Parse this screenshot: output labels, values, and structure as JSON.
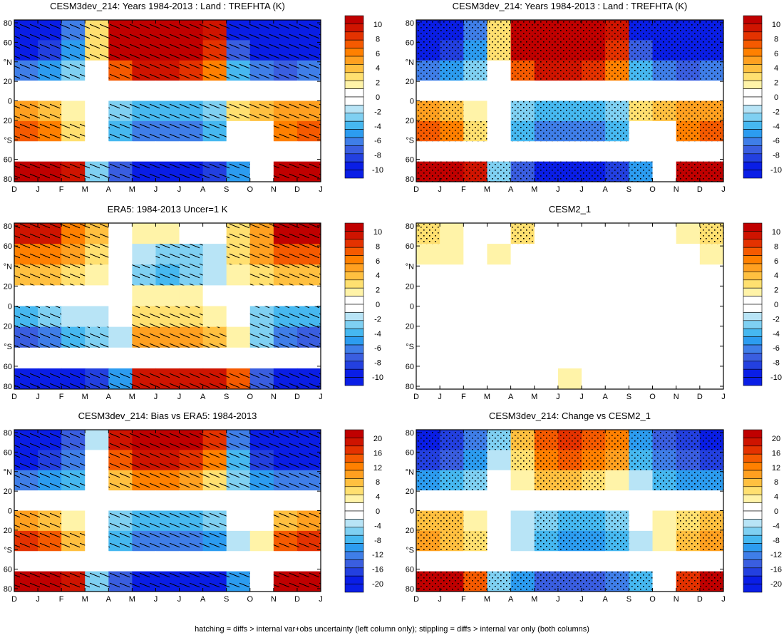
{
  "figure": {
    "footer": "hatching = diffs > internal var+obs uncertainty (left column only); stippling = diffs > internal var only (both columns)"
  },
  "colors": {
    "scale": [
      "#0a1ee6",
      "#2340e0",
      "#3a5ee0",
      "#3f7ee8",
      "#2c9cf0",
      "#46b8f0",
      "#7fd0f2",
      "#b8e4f6",
      "#ffffff",
      "#fff3a8",
      "#ffe070",
      "#ffc040",
      "#ffa020",
      "#ff8000",
      "#f55a00",
      "#e43200",
      "#cf1400",
      "#c00000"
    ]
  },
  "chart_data": [
    {
      "type": "heatmap",
      "panel": "cesm3dev_trefhta",
      "title": "CESM3dev_214: Years 1984-2013 : Land : TREFHTA (K)",
      "x_ticks": [
        "D",
        "J",
        "F",
        "M",
        "A",
        "M",
        "J",
        "J",
        "A",
        "S",
        "O",
        "N",
        "D",
        "J"
      ],
      "y_ticks": [
        "80",
        "60",
        "°N",
        "20",
        "0",
        "20",
        "°S",
        "60",
        "80"
      ],
      "colorbar_labels": [
        "10",
        "8",
        "6",
        "4",
        "2",
        "0",
        "-2",
        "-4",
        "-6",
        "-8",
        "-10"
      ],
      "pattern": "hatching",
      "amplitude": 10,
      "rows": [
        [
          -10,
          -8,
          -5,
          2,
          10,
          10,
          10,
          10,
          8,
          -8,
          -10,
          -10,
          -10
        ],
        [
          -8,
          -7,
          -4,
          2,
          9,
          10,
          10,
          9,
          7,
          -6,
          -8,
          -9,
          -8
        ],
        [
          -5,
          -4,
          -2,
          0,
          6,
          8,
          8,
          7,
          5,
          -3,
          -5,
          -6,
          -5
        ],
        [
          0,
          0,
          0,
          0,
          0,
          0,
          0,
          0,
          0,
          0,
          0,
          0,
          0
        ],
        [
          4,
          3,
          1,
          0,
          -2,
          -3,
          -3,
          -3,
          -2,
          2,
          3,
          4,
          4
        ],
        [
          6,
          5,
          2,
          0,
          -3,
          -5,
          -5,
          -5,
          -3,
          0,
          0,
          5,
          6
        ],
        [
          0,
          0,
          0,
          0,
          0,
          0,
          0,
          0,
          0,
          0,
          0,
          0,
          0
        ],
        [
          10,
          10,
          8,
          -2,
          -6,
          -8,
          -8,
          -8,
          -7,
          -4,
          0,
          9,
          10
        ]
      ]
    },
    {
      "type": "heatmap",
      "panel": "cesm3dev_trefhta_right",
      "title": "CESM3dev_214: Years 1984-2013 : Land : TREFHTA (K)",
      "x_ticks": [
        "D",
        "J",
        "F",
        "M",
        "A",
        "M",
        "J",
        "J",
        "A",
        "S",
        "O",
        "N",
        "D",
        "J"
      ],
      "y_ticks": [
        "80",
        "60",
        "°N",
        "20",
        "0",
        "20",
        "°S",
        "60",
        "80"
      ],
      "colorbar_labels": [
        "10",
        "8",
        "6",
        "4",
        "2",
        "0",
        "-2",
        "-4",
        "-6",
        "-8",
        "-10"
      ],
      "pattern": "stippling",
      "amplitude": 10,
      "rows": [
        [
          -10,
          -8,
          -5,
          2,
          10,
          10,
          10,
          10,
          8,
          -8,
          -10,
          -10,
          -10
        ],
        [
          -8,
          -7,
          -4,
          2,
          9,
          10,
          10,
          9,
          7,
          -6,
          -8,
          -9,
          -8
        ],
        [
          -5,
          -4,
          -2,
          0,
          6,
          8,
          8,
          7,
          5,
          -3,
          -5,
          -6,
          -5
        ],
        [
          0,
          0,
          0,
          0,
          0,
          0,
          0,
          0,
          0,
          0,
          0,
          0,
          0
        ],
        [
          4,
          3,
          1,
          0,
          -2,
          -3,
          -3,
          -3,
          -2,
          2,
          3,
          4,
          4
        ],
        [
          6,
          5,
          2,
          0,
          -3,
          -5,
          -5,
          -5,
          -3,
          0,
          0,
          5,
          6
        ],
        [
          0,
          0,
          0,
          0,
          0,
          0,
          0,
          0,
          0,
          0,
          0,
          0,
          0
        ],
        [
          10,
          10,
          8,
          -2,
          -6,
          -8,
          -8,
          -8,
          -7,
          -4,
          0,
          9,
          10
        ]
      ]
    },
    {
      "type": "heatmap",
      "panel": "era5_uncer",
      "title": "ERA5: 1984-2013 Uncer=1 K",
      "x_ticks": [
        "D",
        "J",
        "F",
        "M",
        "A",
        "M",
        "J",
        "J",
        "A",
        "S",
        "O",
        "N",
        "D",
        "J"
      ],
      "y_ticks": [
        "80",
        "60",
        "°N",
        "20",
        "0",
        "20",
        "°S",
        "60",
        "80"
      ],
      "colorbar_labels": [
        "10",
        "8",
        "6",
        "4",
        "2",
        "0",
        "-2",
        "-4",
        "-6",
        "-8",
        "-10"
      ],
      "pattern": "hatching",
      "amplitude": 10,
      "rows": [
        [
          8,
          8,
          5,
          3,
          0,
          1,
          1,
          0,
          0,
          2,
          4,
          9,
          10
        ],
        [
          5,
          5,
          4,
          2,
          0,
          -1,
          -2,
          -2,
          -1,
          2,
          4,
          6,
          6
        ],
        [
          3,
          3,
          2,
          1,
          0,
          -2,
          -3,
          -2,
          -1,
          1,
          2,
          3,
          3
        ],
        [
          0,
          0,
          0,
          0,
          0,
          1,
          1,
          1,
          0,
          0,
          0,
          0,
          0
        ],
        [
          -3,
          -2,
          -1,
          -1,
          0,
          2,
          2,
          2,
          1,
          0,
          -2,
          -3,
          -3
        ],
        [
          -6,
          -5,
          -3,
          -2,
          -1,
          4,
          4,
          4,
          3,
          1,
          -2,
          -5,
          -6
        ],
        [
          0,
          0,
          0,
          0,
          0,
          0,
          0,
          0,
          0,
          0,
          0,
          0,
          0
        ],
        [
          -10,
          -10,
          -9,
          -7,
          -4,
          8,
          8,
          8,
          8,
          6,
          -6,
          -9,
          -10
        ]
      ]
    },
    {
      "type": "heatmap",
      "panel": "cesm2_1",
      "title": "CESM2_1",
      "x_ticks": [
        "D",
        "J",
        "F",
        "M",
        "A",
        "M",
        "J",
        "J",
        "A",
        "S",
        "O",
        "N",
        "D",
        "J"
      ],
      "y_ticks": [
        "80",
        "60",
        "°N",
        "20",
        "0",
        "20",
        "°S",
        "60",
        "80"
      ],
      "colorbar_labels": [
        "10",
        "8",
        "6",
        "4",
        "2",
        "0",
        "-2",
        "-4",
        "-6",
        "-8",
        "-10"
      ],
      "pattern": "stippling",
      "amplitude": 10,
      "rows": [
        [
          2,
          1,
          0,
          0,
          2,
          0,
          0,
          0,
          0,
          0,
          0,
          1,
          2
        ],
        [
          1,
          1,
          0,
          1,
          0,
          0,
          0,
          0,
          0,
          0,
          0,
          0,
          1
        ],
        [
          0,
          0,
          0,
          0,
          0,
          0,
          0,
          0,
          0,
          0,
          0,
          0,
          0
        ],
        [
          0,
          0,
          0,
          0,
          0,
          0,
          0,
          0,
          0,
          0,
          0,
          0,
          0
        ],
        [
          0,
          0,
          0,
          0,
          0,
          0,
          0,
          0,
          0,
          0,
          0,
          0,
          0
        ],
        [
          0,
          0,
          0,
          0,
          0,
          0,
          0,
          0,
          0,
          0,
          0,
          0,
          0
        ],
        [
          0,
          0,
          0,
          0,
          0,
          0,
          0,
          0,
          0,
          0,
          0,
          0,
          0
        ],
        [
          0,
          0,
          0,
          0,
          0,
          0,
          1,
          0,
          0,
          0,
          0,
          0,
          0
        ]
      ]
    },
    {
      "type": "heatmap",
      "panel": "bias_vs_era5",
      "title": "CESM3dev_214: Bias vs ERA5: 1984-2013",
      "x_ticks": [
        "D",
        "J",
        "F",
        "M",
        "A",
        "M",
        "J",
        "J",
        "A",
        "S",
        "O",
        "N",
        "D",
        "J"
      ],
      "y_ticks": [
        "80",
        "60",
        "°N",
        "20",
        "0",
        "20",
        "°S",
        "60",
        "80"
      ],
      "colorbar_labels": [
        "20",
        "16",
        "12",
        "8",
        "4",
        "0",
        "-4",
        "-8",
        "-12",
        "-16",
        "-20"
      ],
      "pattern": "hatching",
      "amplitude": 20,
      "rows": [
        [
          -20,
          -18,
          -12,
          -2,
          16,
          18,
          18,
          18,
          14,
          -10,
          -16,
          -20,
          -20
        ],
        [
          -16,
          -14,
          -10,
          0,
          12,
          16,
          16,
          14,
          10,
          -6,
          -14,
          -16,
          -16
        ],
        [
          -10,
          -8,
          -6,
          0,
          6,
          10,
          10,
          8,
          4,
          -4,
          -8,
          -10,
          -10
        ],
        [
          0,
          0,
          0,
          0,
          0,
          0,
          0,
          0,
          0,
          0,
          0,
          0,
          0
        ],
        [
          8,
          6,
          2,
          0,
          -4,
          -6,
          -6,
          -6,
          -4,
          0,
          0,
          6,
          8
        ],
        [
          14,
          12,
          6,
          0,
          -6,
          -10,
          -10,
          -10,
          -8,
          -2,
          2,
          12,
          14
        ],
        [
          0,
          0,
          0,
          0,
          0,
          0,
          0,
          0,
          0,
          0,
          0,
          0,
          0
        ],
        [
          20,
          20,
          16,
          -4,
          -12,
          -18,
          -18,
          -18,
          -16,
          -8,
          0,
          18,
          20
        ]
      ]
    },
    {
      "type": "heatmap",
      "panel": "change_vs_cesm2",
      "title": "CESM3dev_214: Change vs CESM2_1",
      "x_ticks": [
        "D",
        "J",
        "F",
        "M",
        "A",
        "M",
        "J",
        "J",
        "A",
        "S",
        "O",
        "N",
        "D",
        "J"
      ],
      "y_ticks": [
        "80",
        "60",
        "°N",
        "20",
        "0",
        "20",
        "°S",
        "60",
        "80"
      ],
      "colorbar_labels": [
        "20",
        "16",
        "12",
        "8",
        "4",
        "0",
        "-4",
        "-8",
        "-12",
        "-16",
        "-20"
      ],
      "pattern": "stippling",
      "amplitude": 20,
      "rows": [
        [
          -16,
          -14,
          -10,
          -4,
          6,
          12,
          14,
          12,
          10,
          -8,
          -12,
          -14,
          -16
        ],
        [
          -14,
          -12,
          -8,
          -2,
          4,
          10,
          12,
          10,
          8,
          -6,
          -10,
          -12,
          -14
        ],
        [
          -8,
          -6,
          -4,
          0,
          2,
          6,
          6,
          4,
          2,
          -2,
          -6,
          -8,
          -8
        ],
        [
          0,
          0,
          0,
          0,
          0,
          0,
          0,
          0,
          0,
          0,
          0,
          0,
          0
        ],
        [
          6,
          5,
          2,
          0,
          -2,
          -4,
          -6,
          -6,
          -4,
          0,
          2,
          4,
          6
        ],
        [
          8,
          6,
          4,
          0,
          -2,
          -6,
          -8,
          -8,
          -6,
          -2,
          2,
          6,
          8
        ],
        [
          0,
          0,
          0,
          0,
          0,
          0,
          0,
          0,
          0,
          0,
          0,
          0,
          0
        ],
        [
          20,
          18,
          12,
          -4,
          -8,
          -12,
          -12,
          -12,
          -10,
          -6,
          0,
          14,
          20
        ]
      ]
    }
  ]
}
